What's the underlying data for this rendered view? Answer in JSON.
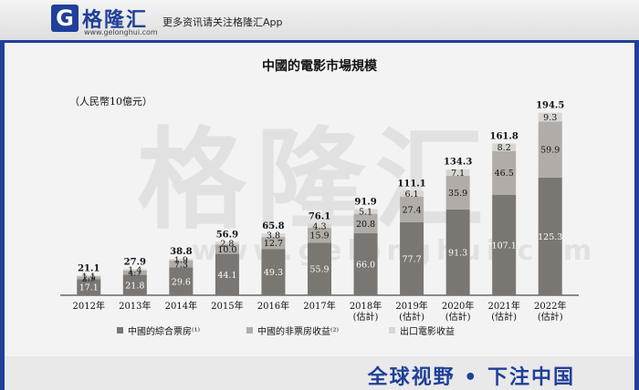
{
  "header": {
    "logo_mark": "G",
    "logo_name": "格隆汇",
    "logo_url": "www.gelonghui.com",
    "promo_text": "更多资讯请关注格隆汇App"
  },
  "watermark": {
    "text": "格隆汇",
    "url": "www.gelonghui.com"
  },
  "footer": {
    "slogan": "全球视野 • 下注中国"
  },
  "colors": {
    "brand_blue": "#1f3f9a",
    "series_box_office": "#7a7672",
    "series_non_box_office": "#b1aca8",
    "series_overseas": "#d9d6d2"
  },
  "chart_data": {
    "type": "bar",
    "stacked": true,
    "title": "中國的電影市場規模",
    "unit_label": "（人民幣10億元）",
    "xlabel": "",
    "ylabel": "",
    "ylim": [
      0,
      200
    ],
    "grid": false,
    "legend_position": "bottom",
    "categories": [
      {
        "year": "2012年",
        "note": ""
      },
      {
        "year": "2013年",
        "note": ""
      },
      {
        "year": "2014年",
        "note": ""
      },
      {
        "year": "2015年",
        "note": ""
      },
      {
        "year": "2016年",
        "note": ""
      },
      {
        "year": "2017年",
        "note": ""
      },
      {
        "year": "2018年",
        "note": "(估計)"
      },
      {
        "year": "2019年",
        "note": "(估計)"
      },
      {
        "year": "2020年",
        "note": "(估計)"
      },
      {
        "year": "2021年",
        "note": "(估計)"
      },
      {
        "year": "2022年",
        "note": "(估計)"
      }
    ],
    "series": [
      {
        "name": "中國的綜合票房⁽¹⁾",
        "color": "#7a7672",
        "label_color": "#ffffff",
        "values": [
          17.1,
          21.8,
          29.6,
          44.1,
          49.3,
          55.9,
          66.0,
          77.7,
          91.3,
          107.1,
          125.3
        ]
      },
      {
        "name": "中國的非票房收益⁽²⁾",
        "color": "#b1aca8",
        "label_color": "#111111",
        "values": [
          2.9,
          4.7,
          7.3,
          10.0,
          12.7,
          15.9,
          20.8,
          27.4,
          35.9,
          46.5,
          59.9
        ]
      },
      {
        "name": "出口電影收益",
        "color": "#d9d6d2",
        "label_color": "#111111",
        "values": [
          1.1,
          1.4,
          1.9,
          2.8,
          3.8,
          4.3,
          5.1,
          6.1,
          7.1,
          8.2,
          9.3
        ]
      }
    ],
    "totals": [
      21.1,
      27.9,
      38.8,
      56.9,
      65.8,
      76.1,
      91.9,
      111.1,
      134.3,
      161.8,
      194.5
    ]
  }
}
